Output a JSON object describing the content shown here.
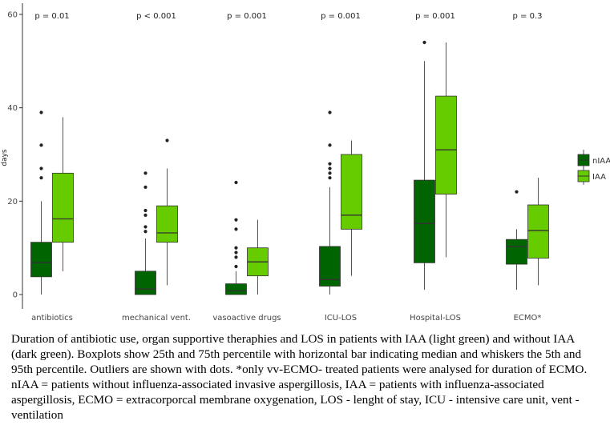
{
  "chart_data": {
    "type": "boxplot",
    "ylabel": "days",
    "ylim": [
      0,
      60
    ],
    "yticks": [
      0,
      20,
      40,
      60
    ],
    "categories": [
      "antibiotics",
      "mechanical vent.",
      "vasoactive drugs",
      "ICU-LOS",
      "Hospital-LOS",
      "ECMO*"
    ],
    "p_values": [
      "p = 0.01",
      "p < 0.001",
      "p = 0.001",
      "p = 0.001",
      "p = 0.001",
      "p = 0.3"
    ],
    "legend": [
      {
        "name": "nIAA",
        "color": "#006400"
      },
      {
        "name": "IAA",
        "color": "#66cc00"
      }
    ],
    "series": [
      {
        "name": "nIAA",
        "color": "#006400",
        "boxes": [
          {
            "whisker_low": 0,
            "q1": 3.8,
            "median": 6.8,
            "q3": 11.2,
            "whisker_high": 20,
            "outliers": [
              25,
              27,
              32,
              39
            ]
          },
          {
            "whisker_low": 0,
            "q1": 0,
            "median": 1.2,
            "q3": 5,
            "whisker_high": 12,
            "outliers": [
              13.5,
              14.5,
              17,
              18,
              23,
              26
            ]
          },
          {
            "whisker_low": 0,
            "q1": 0,
            "median": 0.8,
            "q3": 2.3,
            "whisker_high": 5,
            "outliers": [
              6,
              8,
              9,
              10,
              14,
              16,
              24
            ]
          },
          {
            "whisker_low": 0,
            "q1": 1.8,
            "median": 3.2,
            "q3": 10.3,
            "whisker_high": 23,
            "outliers": [
              25,
              26,
              27,
              28,
              32,
              39
            ]
          },
          {
            "whisker_low": 1,
            "q1": 6.8,
            "median": 15.2,
            "q3": 24.5,
            "whisker_high": 50,
            "outliers": [
              54
            ]
          },
          {
            "whisker_low": 1,
            "q1": 6.5,
            "median": 10.3,
            "q3": 11.8,
            "whisker_high": 14,
            "outliers": [
              22
            ]
          }
        ]
      },
      {
        "name": "IAA",
        "color": "#66cc00",
        "boxes": [
          {
            "whisker_low": 5,
            "q1": 11.2,
            "median": 16.2,
            "q3": 26,
            "whisker_high": 38,
            "outliers": []
          },
          {
            "whisker_low": 2,
            "q1": 11.2,
            "median": 13.2,
            "q3": 19,
            "whisker_high": 27,
            "outliers": [
              33
            ]
          },
          {
            "whisker_low": 0,
            "q1": 4,
            "median": 7,
            "q3": 10,
            "whisker_high": 16,
            "outliers": []
          },
          {
            "whisker_low": 4,
            "q1": 14,
            "median": 17,
            "q3": 30,
            "whisker_high": 33,
            "outliers": []
          },
          {
            "whisker_low": 8,
            "q1": 21.5,
            "median": 31,
            "q3": 42.5,
            "whisker_high": 54,
            "outliers": []
          },
          {
            "whisker_low": 2,
            "q1": 7.8,
            "median": 13.7,
            "q3": 19.2,
            "whisker_high": 25,
            "outliers": []
          }
        ]
      }
    ]
  },
  "caption": "Duration of antibiotic use, organ supportive theraphies and LOS in patients with IAA (light green) and without IAA (dark green). Boxplots show 25th and 75th percentile with horizontal bar indicating median and whiskers the 5th and 95th percentile. Outliers are shown with dots. *only vv-ECMO- treated patients were analysed for duration of ECMO. nIAA = patients without influenza-associated invasive aspergillosis, IAA = patients with influenza-associated aspergillosis, ECMO = extracorporcal membrane oxygenation, LOS - lenght of stay, ICU - intensive care unit, vent - ventilation"
}
